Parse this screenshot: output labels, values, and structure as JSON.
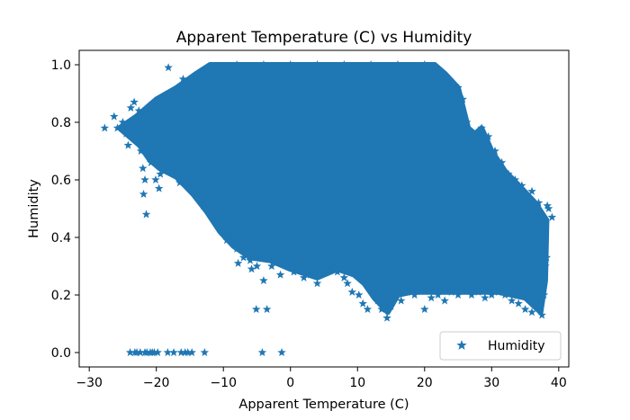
{
  "chart_data": {
    "type": "scatter",
    "title": "Apparent Temperature (C) vs Humidity",
    "xlabel": "Apparent Temperature (C)",
    "ylabel": "Humidity",
    "xlim": [
      -31.5,
      41.5
    ],
    "ylim": [
      -0.05,
      1.05
    ],
    "xticks": [
      -30,
      -20,
      -10,
      0,
      10,
      20,
      30,
      40
    ],
    "yticks": [
      0.0,
      0.2,
      0.4,
      0.6,
      0.8,
      1.0
    ],
    "xtick_labels": [
      "−30",
      "−20",
      "−10",
      "0",
      "10",
      "20",
      "30",
      "40"
    ],
    "ytick_labels": [
      "0.0",
      "0.2",
      "0.4",
      "0.6",
      "0.8",
      "1.0"
    ],
    "grid": false,
    "legend_position": "bottom-right",
    "marker": "star",
    "color": "#1f77b4",
    "series": [
      {
        "name": "Humidity",
        "points": [
          [
            -27.7,
            0.78
          ],
          [
            -26.3,
            0.82
          ],
          [
            -25.8,
            0.78
          ],
          [
            -25.0,
            0.8
          ],
          [
            -24.5,
            0.76
          ],
          [
            -24.2,
            0.72
          ],
          [
            -23.8,
            0.85
          ],
          [
            -23.3,
            0.87
          ],
          [
            -23.0,
            0.79
          ],
          [
            -22.6,
            0.84
          ],
          [
            -22.3,
            0.7
          ],
          [
            -22.0,
            0.64
          ],
          [
            -21.7,
            0.6
          ],
          [
            -21.9,
            0.55
          ],
          [
            -21.5,
            0.48
          ],
          [
            -21.4,
            0.74
          ],
          [
            -20.8,
            0.66
          ],
          [
            -20.3,
            0.68
          ],
          [
            -19.6,
            0.57
          ],
          [
            -19.4,
            0.62
          ],
          [
            -18.8,
            0.78
          ],
          [
            -18.2,
            0.99
          ],
          [
            -17.8,
            0.63
          ],
          [
            -17.4,
            0.86
          ],
          [
            -16.8,
            0.89
          ],
          [
            -16.5,
            0.59
          ],
          [
            -16.0,
            0.95
          ],
          [
            -15.4,
            0.61
          ],
          [
            -15.0,
            0.57
          ],
          [
            -14.2,
            0.55
          ],
          [
            -13.5,
            0.9
          ],
          [
            -13.0,
            0.51
          ],
          [
            -12.3,
            0.52
          ],
          [
            -11.5,
            0.49
          ],
          [
            -11.0,
            0.47
          ],
          [
            -10.5,
            0.44
          ],
          [
            -10.0,
            0.42
          ],
          [
            -9.5,
            0.39
          ],
          [
            -9.0,
            0.4
          ],
          [
            -8.4,
            0.38
          ],
          [
            -8.0,
            0.36
          ],
          [
            -7.5,
            0.37
          ],
          [
            -7.0,
            0.33
          ],
          [
            -6.5,
            0.35
          ],
          [
            -6.0,
            0.32
          ],
          [
            -7.8,
            0.31
          ],
          [
            -5.8,
            0.29
          ],
          [
            -5.0,
            0.3
          ],
          [
            -4.5,
            0.34
          ],
          [
            -4.0,
            0.25
          ],
          [
            -3.5,
            0.36
          ],
          [
            -2.8,
            0.3
          ],
          [
            -2.0,
            0.33
          ],
          [
            -1.5,
            0.27
          ],
          [
            -5.1,
            0.15
          ],
          [
            -3.5,
            0.15
          ],
          [
            0.0,
            0.31
          ],
          [
            0.5,
            0.28
          ],
          [
            1.0,
            0.29
          ],
          [
            2.0,
            0.26
          ],
          [
            3.0,
            0.27
          ],
          [
            4.0,
            0.24
          ],
          [
            5.0,
            0.29
          ],
          [
            6.0,
            0.3
          ],
          [
            7.0,
            0.28
          ],
          [
            8.0,
            0.26
          ],
          [
            8.5,
            0.24
          ],
          [
            9.2,
            0.21
          ],
          [
            10.2,
            0.2
          ],
          [
            10.8,
            0.17
          ],
          [
            11.5,
            0.15
          ],
          [
            12.3,
            0.22
          ],
          [
            13.0,
            0.18
          ],
          [
            13.6,
            0.15
          ],
          [
            14.4,
            0.12
          ],
          [
            15.0,
            0.16
          ],
          [
            15.8,
            0.2
          ],
          [
            16.5,
            0.18
          ],
          [
            17.5,
            0.21
          ],
          [
            18.5,
            0.2
          ],
          [
            19.5,
            0.22
          ],
          [
            20.0,
            0.15
          ],
          [
            21.0,
            0.19
          ],
          [
            22.0,
            0.2
          ],
          [
            23.0,
            0.18
          ],
          [
            24.0,
            0.21
          ],
          [
            25.0,
            0.2
          ],
          [
            26.0,
            0.22
          ],
          [
            27.0,
            0.2
          ],
          [
            28.0,
            0.21
          ],
          [
            29.0,
            0.19
          ],
          [
            30.0,
            0.2
          ],
          [
            31.0,
            0.21
          ],
          [
            32.0,
            0.2
          ],
          [
            33.0,
            0.18
          ],
          [
            34.0,
            0.17
          ],
          [
            35.0,
            0.15
          ],
          [
            36.0,
            0.14
          ],
          [
            37.0,
            0.16
          ],
          [
            37.5,
            0.13
          ],
          [
            37.8,
            0.2
          ],
          [
            38.0,
            0.3
          ],
          [
            38.2,
            0.33
          ],
          [
            37.9,
            0.45
          ],
          [
            38.3,
            0.51
          ],
          [
            38.5,
            0.5
          ],
          [
            39.0,
            0.47
          ],
          [
            37.0,
            0.52
          ],
          [
            36.0,
            0.56
          ],
          [
            35.0,
            0.55
          ],
          [
            34.5,
            0.58
          ],
          [
            33.5,
            0.6
          ],
          [
            32.5,
            0.62
          ],
          [
            31.5,
            0.66
          ],
          [
            30.5,
            0.7
          ],
          [
            29.5,
            0.75
          ],
          [
            28.5,
            0.78
          ],
          [
            27.5,
            0.72
          ],
          [
            26.8,
            0.66
          ],
          [
            26.3,
            0.8
          ],
          [
            25.7,
            0.88
          ],
          [
            25.0,
            0.92
          ],
          [
            24.5,
            0.9
          ],
          [
            23.5,
            0.94
          ],
          [
            22.5,
            0.97
          ],
          [
            21.5,
            0.99
          ],
          [
            20.0,
            1.0
          ],
          [
            16.0,
            1.0
          ],
          [
            12.0,
            1.0
          ],
          [
            8.0,
            1.0
          ],
          [
            4.0,
            1.0
          ],
          [
            0.0,
            1.0
          ],
          [
            -4.0,
            1.0
          ],
          [
            -8.0,
            1.0
          ],
          [
            -10.5,
            0.99
          ],
          [
            -12.5,
            0.96
          ],
          [
            -14.5,
            0.93
          ],
          [
            -20.1,
            0.6
          ],
          [
            -18.9,
            0.76
          ],
          [
            -16.7,
            0.72
          ],
          [
            -15.6,
            0.81
          ],
          [
            -14.0,
            0.66
          ],
          [
            -12.8,
            0.71
          ],
          [
            -11.2,
            0.62
          ],
          [
            -9.8,
            0.58
          ],
          [
            -8.1,
            0.53
          ],
          [
            -6.6,
            0.49
          ],
          [
            -4.9,
            0.45
          ],
          [
            -3.2,
            0.43
          ],
          [
            -1.1,
            0.4
          ],
          [
            1.5,
            0.37
          ],
          [
            3.8,
            0.35
          ],
          [
            6.2,
            0.34
          ],
          [
            9.0,
            0.31
          ],
          [
            -23.9,
            0.0
          ],
          [
            -23.2,
            0.0
          ],
          [
            -22.9,
            0.0
          ],
          [
            -22.4,
            0.0
          ],
          [
            -21.7,
            0.0
          ],
          [
            -21.4,
            0.0
          ],
          [
            -20.9,
            0.0
          ],
          [
            -20.6,
            0.0
          ],
          [
            -20.3,
            0.0
          ],
          [
            -19.8,
            0.0
          ],
          [
            -18.3,
            0.0
          ],
          [
            -17.4,
            0.0
          ],
          [
            -16.3,
            0.0
          ],
          [
            -15.7,
            0.0
          ],
          [
            -15.3,
            0.0
          ],
          [
            -14.7,
            0.0
          ],
          [
            -12.8,
            0.0
          ],
          [
            -4.2,
            0.0
          ],
          [
            -1.3,
            0.0
          ]
        ],
        "dense_region": [
          [
            -25.5,
            0.78
          ],
          [
            -23.0,
            0.82
          ],
          [
            -20.0,
            0.88
          ],
          [
            -17.0,
            0.92
          ],
          [
            -14.0,
            0.97
          ],
          [
            -12.0,
            1.0
          ],
          [
            21.5,
            1.0
          ],
          [
            23.0,
            0.97
          ],
          [
            25.0,
            0.92
          ],
          [
            26.5,
            0.78
          ],
          [
            27.5,
            0.76
          ],
          [
            28.5,
            0.78
          ],
          [
            30.0,
            0.7
          ],
          [
            32.0,
            0.63
          ],
          [
            34.5,
            0.57
          ],
          [
            36.5,
            0.52
          ],
          [
            38.2,
            0.46
          ],
          [
            38.0,
            0.25
          ],
          [
            37.3,
            0.14
          ],
          [
            35.0,
            0.19
          ],
          [
            31.0,
            0.21
          ],
          [
            27.0,
            0.21
          ],
          [
            22.0,
            0.21
          ],
          [
            18.0,
            0.21
          ],
          [
            16.0,
            0.2
          ],
          [
            14.5,
            0.14
          ],
          [
            12.5,
            0.19
          ],
          [
            11.0,
            0.24
          ],
          [
            9.5,
            0.27
          ],
          [
            7.0,
            0.29
          ],
          [
            4.0,
            0.26
          ],
          [
            0.0,
            0.29
          ],
          [
            -3.0,
            0.32
          ],
          [
            -6.0,
            0.33
          ],
          [
            -8.5,
            0.37
          ],
          [
            -10.5,
            0.42
          ],
          [
            -12.5,
            0.49
          ],
          [
            -14.5,
            0.55
          ],
          [
            -17.0,
            0.61
          ],
          [
            -19.5,
            0.64
          ],
          [
            -21.0,
            0.67
          ],
          [
            -22.5,
            0.72
          ],
          [
            -24.0,
            0.75
          ]
        ]
      }
    ]
  }
}
